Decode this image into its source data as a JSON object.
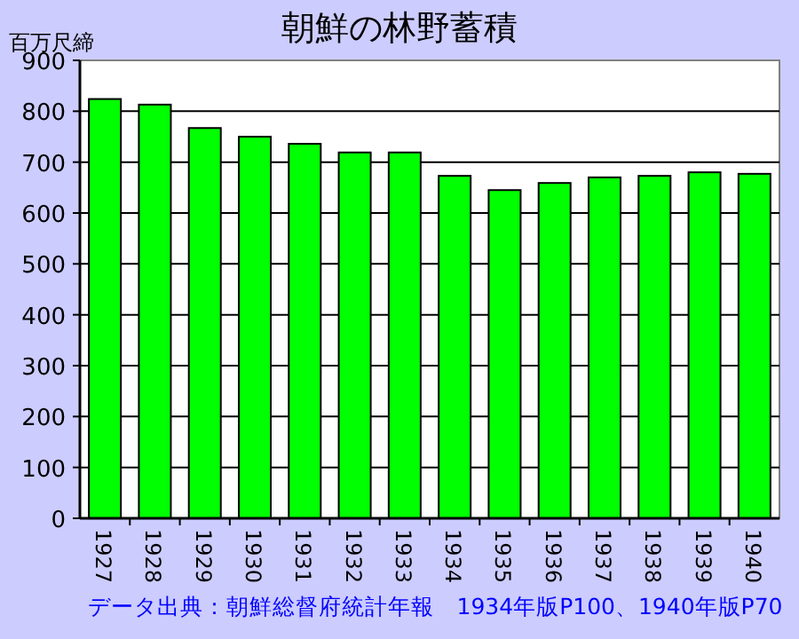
{
  "chart_data": {
    "type": "bar",
    "title": "朝鮮の林野蓄積",
    "ylabel": "百万尺締",
    "categories": [
      "1927",
      "1928",
      "1929",
      "1930",
      "1931",
      "1932",
      "1933",
      "1934",
      "1935",
      "1936",
      "1937",
      "1938",
      "1939",
      "1940"
    ],
    "values": [
      824,
      813,
      767,
      750,
      736,
      719,
      719,
      673,
      645,
      659,
      670,
      673,
      680,
      677
    ],
    "color": "#00ff00",
    "ylim": [
      0,
      900
    ],
    "yticks": [
      0,
      100,
      200,
      300,
      400,
      500,
      600,
      700,
      800,
      900
    ],
    "grid": "y",
    "annotations": [
      "データ出典：朝鮮総督府統計年報　1934年版P100、1940年版P70"
    ]
  }
}
